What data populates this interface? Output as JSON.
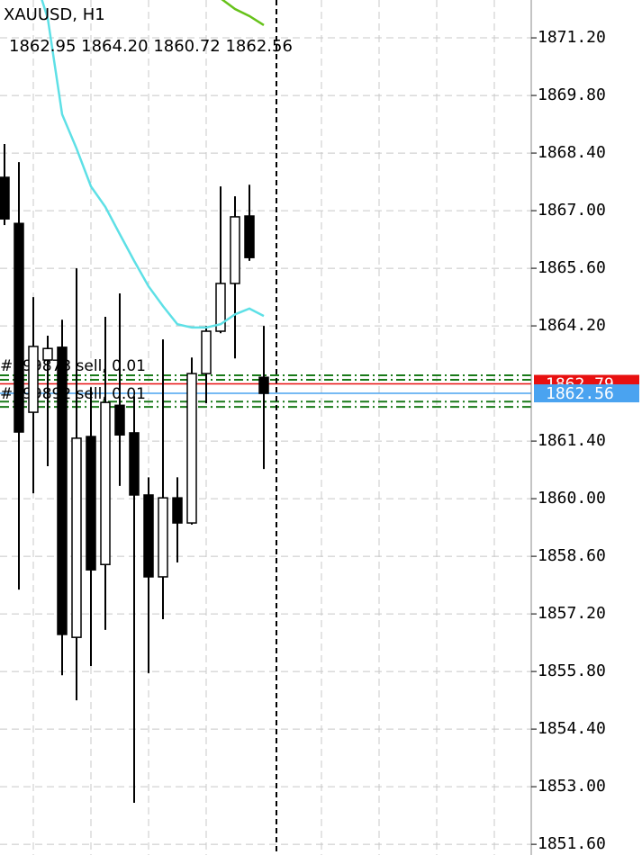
{
  "chart_data": {
    "type": "candlestick",
    "title": "XAUUSD, H1",
    "ohlc_text": "1862.95 1864.20 1860.72 1862.56",
    "open": [
      1867.81,
      1866.69,
      1862.1,
      1863.37,
      1863.68,
      1856.63,
      1861.51,
      1858.4,
      1862.27,
      1861.6,
      1860.09,
      1858.1,
      1860.02,
      1859.41,
      1863.04,
      1864.07,
      1865.23,
      1866.87,
      1862.95
    ],
    "high": [
      1868.62,
      1868.18,
      1864.9,
      1863.96,
      1864.35,
      1865.6,
      1862.71,
      1864.42,
      1864.99,
      1862.49,
      1860.52,
      1863.87,
      1860.52,
      1863.43,
      1864.2,
      1867.59,
      1867.35,
      1867.63,
      1864.2
    ],
    "low": [
      1866.65,
      1857.79,
      1860.13,
      1860.79,
      1855.71,
      1855.1,
      1855.93,
      1856.81,
      1860.31,
      1852.61,
      1855.76,
      1857.07,
      1858.45,
      1859.37,
      1862.32,
      1864.02,
      1863.41,
      1865.78,
      1860.72
    ],
    "close": [
      1866.8,
      1861.62,
      1863.7,
      1863.65,
      1856.7,
      1861.47,
      1858.27,
      1862.34,
      1861.55,
      1860.09,
      1858.1,
      1860.02,
      1859.41,
      1863.04,
      1864.07,
      1865.23,
      1866.85,
      1865.86,
      1862.56
    ],
    "color_up": "#ffffff",
    "color_down": "#000000",
    "indicators": [
      {
        "color": "#5ee0e6",
        "values": [
          null,
          null,
          1872.78,
          1871.68,
          1869.34,
          1868.51,
          1867.59,
          1867.09,
          1866.43,
          1865.78,
          1865.16,
          1864.68,
          1864.24,
          1864.16,
          1864.16,
          1864.24,
          1864.48,
          1864.62,
          1864.44
        ]
      },
      {
        "color": "#66c21a",
        "values": [
          null,
          null,
          null,
          null,
          null,
          null,
          null,
          null,
          null,
          null,
          null,
          null,
          null,
          null,
          null,
          1872.16,
          1871.9,
          1871.73,
          1871.51
        ]
      }
    ],
    "levels": [
      {
        "value": 1863.0,
        "color": "#1a7a1a"
      },
      {
        "value": 1862.89,
        "color": "#1a7a1a"
      },
      {
        "value": 1862.36,
        "color": "#1a7a1a"
      },
      {
        "value": 1862.23,
        "color": "#1a7a1a"
      }
    ],
    "orders": [
      "#599873 sell, 0.01",
      "#599892 sell, 0.01"
    ],
    "bid": {
      "value": 1862.79,
      "label": "1862.79",
      "color": "#e81010"
    },
    "ask": {
      "value": 1862.56,
      "label": "1862.56",
      "color": "#4aa3f0"
    },
    "ylim": [
      1851.34,
      1872.12
    ],
    "yticks": [
      {
        "value": 1871.2,
        "label": "1871.20"
      },
      {
        "value": 1869.8,
        "label": "1869.80"
      },
      {
        "value": 1868.4,
        "label": "1868.40"
      },
      {
        "value": 1867.0,
        "label": "1867.00"
      },
      {
        "value": 1865.6,
        "label": "1865.60"
      },
      {
        "value": 1864.2,
        "label": "1864.20"
      },
      {
        "value": 1861.4,
        "label": "1861.40"
      },
      {
        "value": 1860.0,
        "label": "1860.00"
      },
      {
        "value": 1858.6,
        "label": "1858.60"
      },
      {
        "value": 1857.2,
        "label": "1857.20"
      },
      {
        "value": 1855.8,
        "label": "1855.80"
      },
      {
        "value": 1854.4,
        "label": "1854.40"
      },
      {
        "value": 1853.0,
        "label": "1853.00"
      },
      {
        "value": 1851.6,
        "label": "1851.60"
      }
    ],
    "grid": true
  }
}
